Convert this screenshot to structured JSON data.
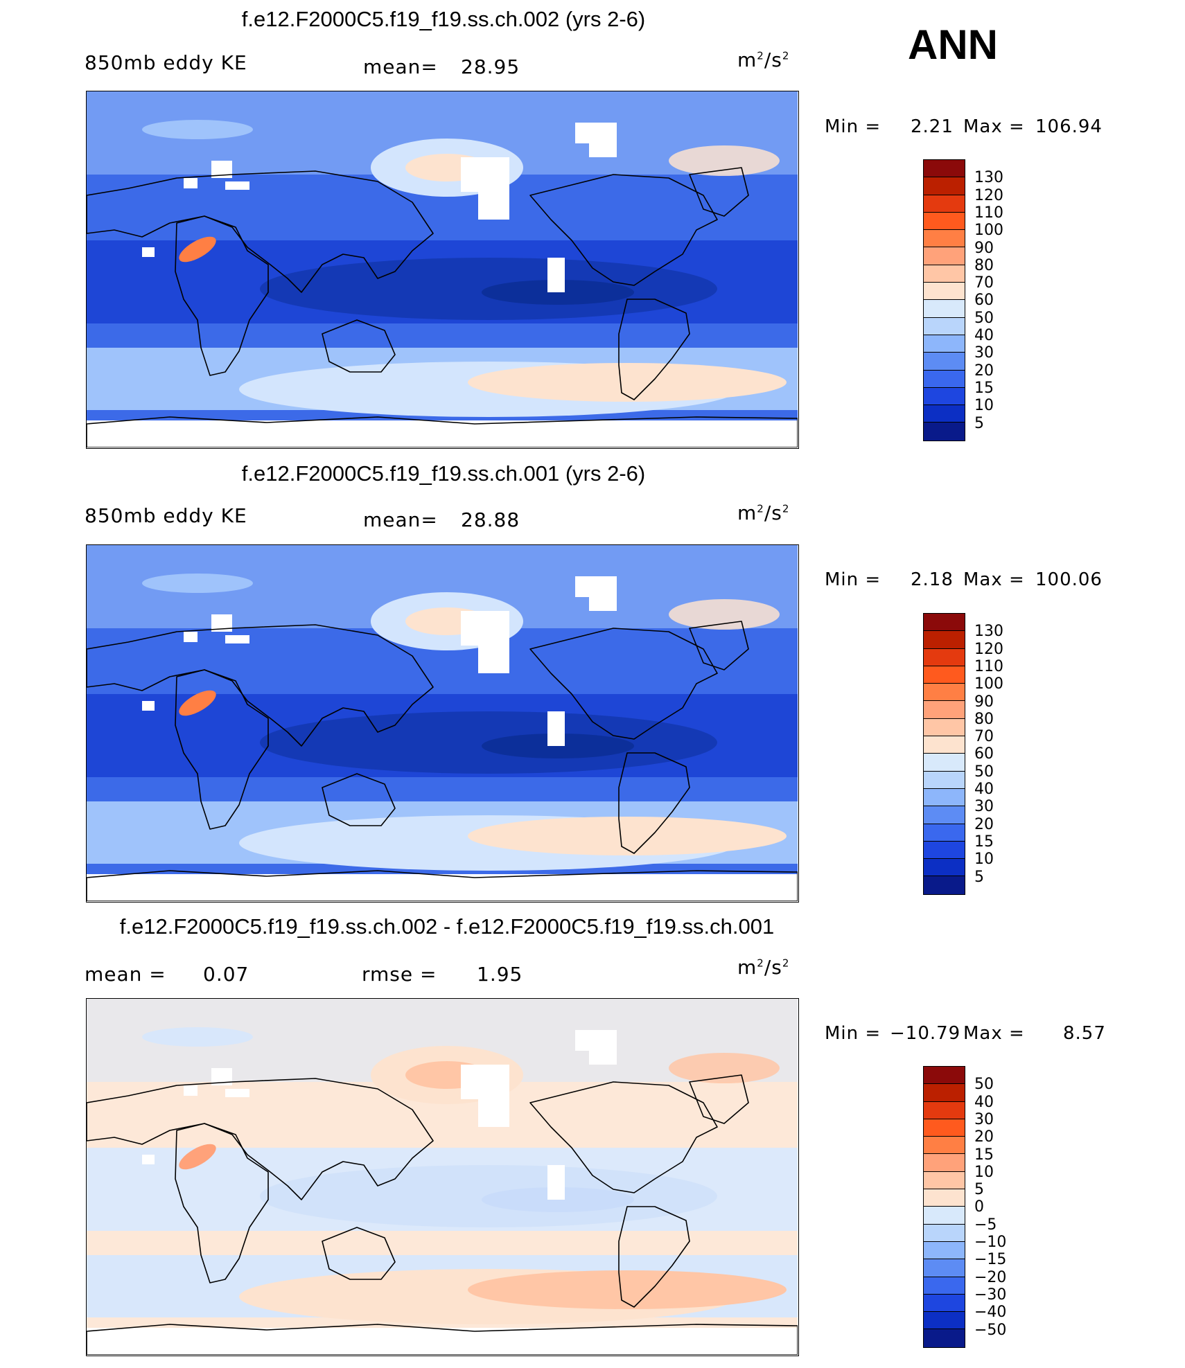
{
  "season": "ANN",
  "panels": [
    {
      "title": "f.e12.F2000C5.f19_f19.ss.ch.002 (yrs 2-6)",
      "left_label": "850mb eddy KE",
      "mid_label": "mean=",
      "mid_value": "28.95",
      "units_base": "m",
      "units_exp": "2",
      "units_sep": "/s",
      "units_exp2": "2",
      "stats": {
        "min_label": "Min  =",
        "min_value": "2.21",
        "max_label": "Max  =",
        "max_value": "106.94"
      },
      "colorbar": {
        "labels": [
          "130",
          "120",
          "110",
          "100",
          "90",
          "80",
          "70",
          "60",
          "50",
          "40",
          "30",
          "20",
          "15",
          "10",
          "5"
        ],
        "colors": [
          "#8b0a0a",
          "#bb2000",
          "#e43a0f",
          "#ff5a1e",
          "#ff7f44",
          "#ffa27a",
          "#ffc6a6",
          "#fde3cf",
          "#d8e9fb",
          "#b9d5fb",
          "#8db6fb",
          "#5d8cf4",
          "#3a68ee",
          "#1e46e0",
          "#0c2fc4",
          "#091a8a"
        ]
      },
      "map_colors": {
        "background": "#3c6ae8",
        "tropics": "#1e46d6",
        "core": "#0c2f9a",
        "midlat": "#9fc3fb",
        "storm": "#d3e5fd",
        "peak": "#fde3cf",
        "jet": "#ff7f44"
      }
    },
    {
      "title": "f.e12.F2000C5.f19_f19.ss.ch.001 (yrs 2-6)",
      "left_label": "850mb eddy KE",
      "mid_label": "mean=",
      "mid_value": "28.88",
      "units_base": "m",
      "units_exp": "2",
      "units_sep": "/s",
      "units_exp2": "2",
      "stats": {
        "min_label": "Min  =",
        "min_value": "2.18",
        "max_label": "Max  =",
        "max_value": "100.06"
      },
      "colorbar": {
        "labels": [
          "130",
          "120",
          "110",
          "100",
          "90",
          "80",
          "70",
          "60",
          "50",
          "40",
          "30",
          "20",
          "15",
          "10",
          "5"
        ],
        "colors": [
          "#8b0a0a",
          "#bb2000",
          "#e43a0f",
          "#ff5a1e",
          "#ff7f44",
          "#ffa27a",
          "#ffc6a6",
          "#fde3cf",
          "#d8e9fb",
          "#b9d5fb",
          "#8db6fb",
          "#5d8cf4",
          "#3a68ee",
          "#1e46e0",
          "#0c2fc4",
          "#091a8a"
        ]
      },
      "map_colors": {
        "background": "#3c6ae8",
        "tropics": "#1e46d6",
        "core": "#0c2f9a",
        "midlat": "#9fc3fb",
        "storm": "#d3e5fd",
        "peak": "#fde3cf",
        "jet": "#ff7f44"
      }
    },
    {
      "title": "f.e12.F2000C5.f19_f19.ss.ch.002 - f.e12.F2000C5.f19_f19.ss.ch.001",
      "left_label": "mean  =",
      "left_value": "0.07",
      "mid_label": "rmse  =",
      "mid_value": "1.95",
      "units_base": "m",
      "units_exp": "2",
      "units_sep": "/s",
      "units_exp2": "2",
      "stats": {
        "min_label": "Min  =",
        "min_value": "−10.79",
        "max_label": "Max  =",
        "max_value": "8.57"
      },
      "colorbar": {
        "labels": [
          "50",
          "40",
          "30",
          "20",
          "15",
          "10",
          "5",
          "0",
          "−5",
          "−10",
          "−15",
          "−20",
          "−30",
          "−40",
          "−50"
        ],
        "colors": [
          "#8b0a0a",
          "#bb2000",
          "#e43a0f",
          "#ff5a1e",
          "#ff7f44",
          "#ffa27a",
          "#ffc6a6",
          "#fde3cf",
          "#d8e9fb",
          "#b9d5fb",
          "#8db6fb",
          "#5d8cf4",
          "#3a68ee",
          "#1e46e0",
          "#0c2fc4",
          "#091a8a"
        ]
      },
      "map_colors": {
        "background": "#fde8d8",
        "tropics": "#dce9fb",
        "core": "#c9dcfa",
        "midlat": "#d8e7fb",
        "storm": "#fde3cf",
        "peak": "#ffc6a6",
        "jet": "#ffa27a"
      }
    }
  ]
}
